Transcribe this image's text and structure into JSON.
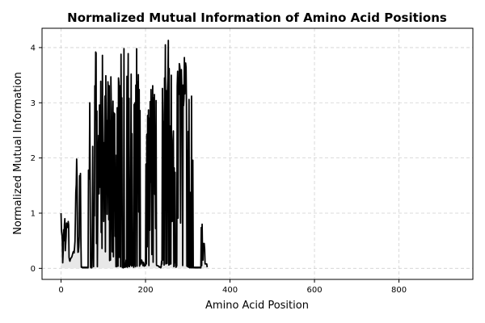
{
  "chart_data": {
    "type": "area",
    "title": "Normalized Mutual Information of Amino Acid Positions",
    "xlabel": "Amino Acid Position",
    "ylabel": "Normalized Mutual Information",
    "xlim": [
      -45,
      975
    ],
    "ylim": [
      -0.2,
      4.35
    ],
    "x_ticks": [
      0,
      200,
      400,
      600,
      800
    ],
    "y_ticks": [
      0,
      1,
      2,
      3,
      4
    ],
    "grid": true,
    "line_color": "#000000",
    "fill_color": "#e8e8e8",
    "x_start": 0,
    "x_step": 1,
    "series": [
      {
        "values": [
          1.0,
          0.68,
          0.62,
          0.52,
          0.1,
          0.3,
          0.7,
          0.5,
          0.8,
          0.9,
          0.32,
          0.45,
          0.58,
          0.82,
          0.79,
          0.74,
          0.75,
          0.85,
          0.79,
          0.2,
          0.15,
          0.13,
          0.16,
          0.18,
          0.19,
          0.2,
          0.22,
          0.25,
          0.28,
          0.3,
          0.31,
          0.28,
          0.38,
          0.49,
          0.91,
          1.38,
          1.52,
          1.98,
          1.6,
          0.61,
          0.29,
          0.3,
          0.39,
          0.58,
          1.68,
          1.19,
          1.72,
          0.55,
          0.02,
          0.03,
          0.02,
          0.01,
          0.02,
          0.01,
          0.02,
          0.02,
          0.01,
          0.02,
          0.01,
          0.02,
          0.01,
          0.02,
          0.01,
          0.02,
          0.01,
          1.78,
          1.71,
          1.62,
          3.0,
          1.5,
          0.02,
          0.01,
          0.02,
          0.01,
          0.84,
          2.21,
          0.5,
          0.03,
          1.08,
          0.95,
          3.31,
          2.7,
          3.92,
          3.9,
          0.45,
          2.85,
          0.03,
          1.15,
          2.06,
          2.41,
          1.35,
          2.96,
          2.41,
          1.47,
          3.39,
          0.65,
          2.36,
          0.36,
          3.86,
          2.1,
          2.28,
          0.85,
          1.72,
          2.29,
          3.12,
          0.3,
          3.49,
          2.31,
          2.68,
          0.98,
          1.91,
          3.38,
          3.19,
          0.88,
          3.31,
          0.14,
          2.67,
          0.15,
          3.47,
          2.9,
          1.46,
          0.3,
          2.36,
          3.03,
          0.21,
          2.82,
          1.04,
          2.8,
          0.58,
          1.03,
          0.03,
          2.05,
          0.03,
          2.91,
          1.09,
          0.04,
          3.45,
          3.37,
          0.2,
          3.31,
          3.12,
          0.03,
          3.88,
          2.35,
          3.09,
          0.02,
          0.03,
          0.01,
          0.02,
          3.98,
          0.02,
          0.03,
          0.02,
          0.05,
          0.15,
          0.03,
          3.48,
          0.02,
          2.81,
          3.89,
          0.04,
          3.08,
          0.03,
          0.29,
          0.06,
          1.74,
          3.52,
          0.04,
          2.44,
          0.05,
          0.06,
          0.12,
          0.02,
          2.97,
          0.06,
          3.0,
          0.03,
          3.32,
          1.48,
          3.98,
          0.04,
          3.38,
          2.66,
          3.51,
          1.02,
          3.24,
          0.04,
          2.86,
          0.07,
          0.09,
          0.14,
          0.15,
          0.12,
          0.08,
          0.05,
          0.11,
          0.09,
          0.04,
          0.05,
          0.06,
          0.05,
          1.89,
          0.08,
          2.43,
          0.39,
          2.77,
          0.7,
          2.87,
          0.05,
          2.72,
          0.69,
          3.02,
          1.56,
          3.24,
          1.59,
          0.25,
          2.63,
          3.31,
          0.11,
          3.09,
          1.99,
          3.15,
          1.34,
          2.12,
          0.72,
          3.04,
          0.06,
          0.05,
          0.05,
          0.05,
          0.04,
          0.04,
          0.03,
          0.02,
          0.03,
          0.02,
          0.01,
          0.03,
          0.13,
          0.08,
          3.26,
          2.8,
          0.15,
          2.66,
          0.06,
          3.45,
          2.7,
          4.05,
          0.08,
          3.22,
          2.53,
          0.09,
          3.23,
          3.45,
          4.13,
          0.06,
          3.62,
          0.07,
          0.09,
          2.58,
          0.08,
          3.5,
          0.88,
          0.85,
          0.86,
          2.32,
          2.49,
          0.03,
          1.82,
          0.1,
          1.74,
          0.05,
          0.02,
          0.03,
          0.05,
          3.3,
          3.57,
          0.91,
          3.45,
          3.15,
          3.71,
          3.67,
          3.57,
          0.82,
          3.08,
          3.6,
          3.26,
          3.3,
          0.05,
          3.32,
          2.95,
          3.08,
          3.82,
          3.16,
          3.5,
          3.72,
          3.64,
          2.98,
          0.04,
          2.13,
          0.03,
          2.48,
          0.02,
          3.06,
          0.02,
          0.01,
          0.03,
          1.38,
          0.01,
          3.12,
          0.02,
          0.01,
          1.96,
          0.01,
          0.01,
          0.01,
          0.02,
          0.01,
          0.02,
          0.01,
          0.02,
          0.01,
          0.02,
          0.01,
          0.02,
          0.01,
          0.02,
          0.01,
          0.02,
          0.01,
          0.02,
          0.01,
          0.74,
          0.05,
          0.8,
          0.27,
          0.15,
          0.45,
          0.35,
          0.45,
          0.35,
          0.08,
          0.08,
          0.08,
          0.08,
          0.08,
          0.02
        ]
      }
    ]
  }
}
